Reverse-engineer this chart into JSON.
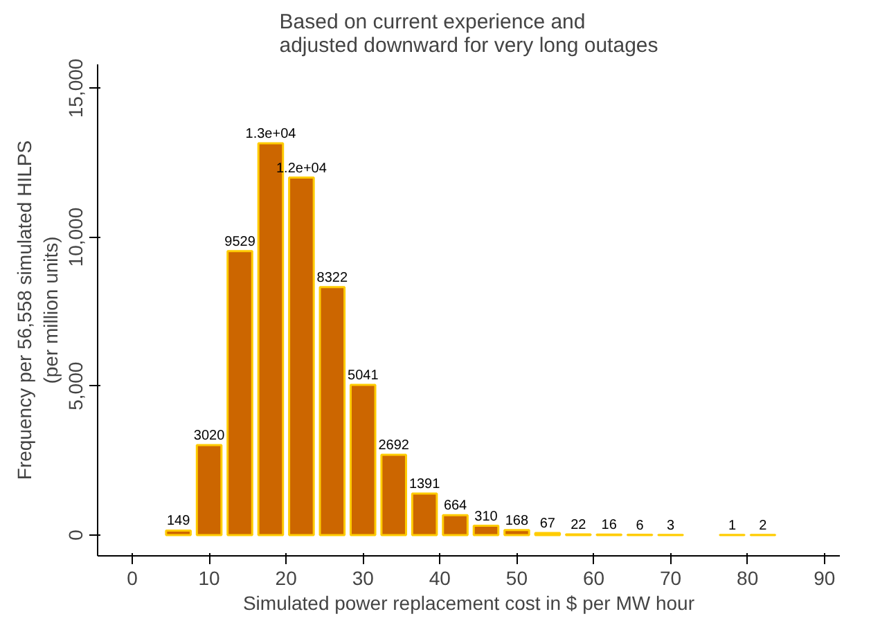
{
  "chart_data": {
    "type": "histogram",
    "title": "Based on current experience and\nadjusted downward for very long outages",
    "xlabel": "Simulated power replacement cost in $ per MW hour",
    "ylabel": "Frequency per 56,558 simulated HILPS\n(per million units)",
    "bins": [
      4,
      8,
      12,
      16,
      20,
      24,
      28,
      32,
      36,
      40,
      44,
      48,
      52,
      56,
      60,
      64,
      68,
      72,
      76,
      80,
      84
    ],
    "values": [
      149,
      3020,
      9529,
      13150,
      12000,
      8322,
      5041,
      2692,
      1391,
      664,
      310,
      168,
      67,
      22,
      16,
      6,
      3,
      0,
      1,
      2
    ],
    "value_labels": [
      "149",
      "3020",
      "9529",
      "1.3e+04",
      "1.2e+04",
      "8322",
      "5041",
      "2692",
      "1391",
      "664",
      "310",
      "168",
      "67",
      "22",
      "16",
      "6",
      "3",
      null,
      "1",
      "2"
    ],
    "color": "#cc6600",
    "xlim": [
      -4.5,
      92
    ],
    "xticks": [
      0,
      10,
      20,
      30,
      40,
      50,
      60,
      70,
      80,
      90
    ],
    "ylim": [
      -700,
      15800
    ],
    "yticks": [
      0,
      {
        "value": 5000,
        "label": "5,000"
      },
      {
        "value": 10000,
        "label": "10,000"
      },
      {
        "value": 15000,
        "label": "15,000"
      }
    ],
    "grid": false
  }
}
